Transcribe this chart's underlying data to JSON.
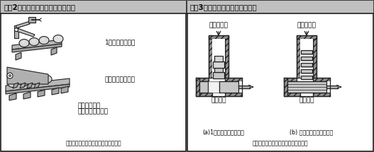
{
  "fig2_title": "【図2】止めはずし式分離方式の例",
  "fig3_title": "【図3】切り取り式分離方式の例",
  "fig2_label1": "1個の部品を離す",
  "fig2_label2": "数個の部品を離す",
  "fig2_label3": "爪による１個\nまたは数個の分離",
  "fig3_label1": "供給機から",
  "fig3_label2": "供給機から",
  "fig3_label3": "スライド",
  "fig3_label4": "スライド",
  "fig3_caption_a": "(a)1個の部品を配送する",
  "fig3_caption_b": "(b) 数個の部品を配送する",
  "source_text": "【資料】工場自動化・省略化事典より",
  "bg_color": "#d8d8d8",
  "title_bg": "#c0c0c0",
  "border_color": "#303030",
  "line_color": "#202020",
  "wall_color": "#909090",
  "part_color": "#c8c8c8",
  "white": "#ffffff"
}
